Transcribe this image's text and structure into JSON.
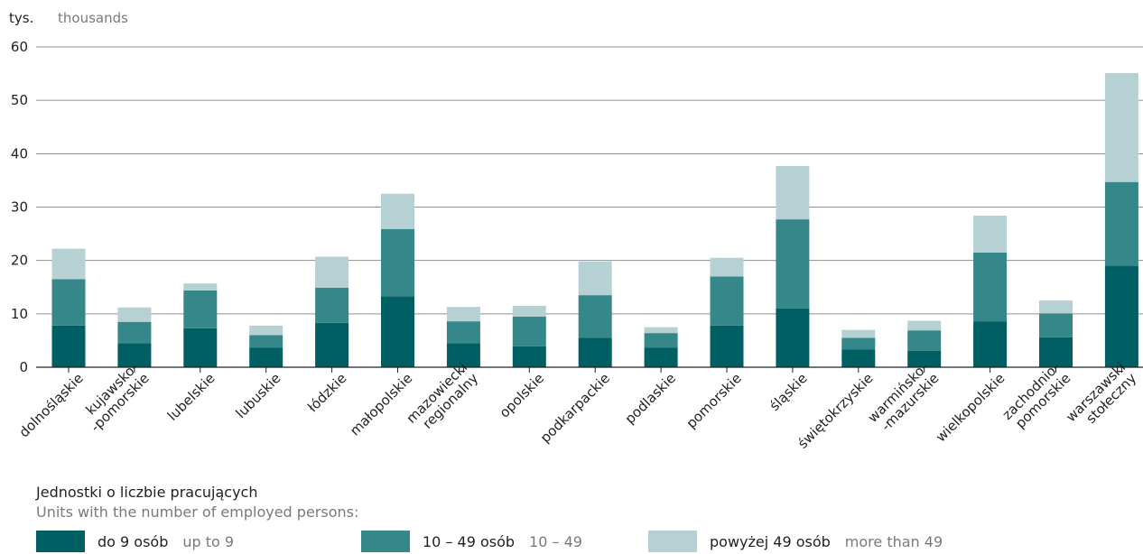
{
  "chart_data": {
    "type": "bar",
    "stacked": true,
    "unit_label_pl": "tys.",
    "unit_label_en": "thousands",
    "ylim": [
      0,
      60
    ],
    "yticks": [
      0,
      10,
      20,
      30,
      40,
      50,
      60
    ],
    "grid": true,
    "categories": [
      [
        "dolnośląskie"
      ],
      [
        "kujawsko-",
        "-pomorskie"
      ],
      [
        "lubelskie"
      ],
      [
        "lubuskie"
      ],
      [
        "łódzkie"
      ],
      [
        "małopolskie"
      ],
      [
        "mazowiecki",
        "regionalny"
      ],
      [
        "opolskie"
      ],
      [
        "podkarpackie"
      ],
      [
        "podlaskie"
      ],
      [
        "pomorskie"
      ],
      [
        "śląskie"
      ],
      [
        "świętokrzyskie"
      ],
      [
        "warmińsko-",
        "-mazurskie"
      ],
      [
        "wielkopolskie"
      ],
      [
        "zachodnio-",
        "pomorskie"
      ],
      [
        "warszawski",
        "stołeczny"
      ]
    ],
    "series": [
      {
        "name": "do 9 osób",
        "name_en": "up to 9",
        "color": "#005f62",
        "values": [
          7.8,
          4.5,
          7.3,
          3.7,
          8.3,
          13.3,
          4.5,
          3.9,
          5.5,
          3.7,
          7.8,
          11.0,
          3.3,
          3.1,
          8.6,
          5.6,
          19.0
        ]
      },
      {
        "name": "10 – 49 osób",
        "name_en": "10 – 49",
        "color": "#35878a",
        "values": [
          8.7,
          4.0,
          7.1,
          2.3,
          6.6,
          12.6,
          4.1,
          5.6,
          8.0,
          2.7,
          9.2,
          16.7,
          2.2,
          3.8,
          12.9,
          4.5,
          15.7
        ]
      },
      {
        "name": "powyżej 49 osób",
        "name_en": "more than 49",
        "color": "#b5d1d4",
        "values": [
          5.7,
          2.7,
          1.3,
          1.8,
          5.8,
          6.6,
          2.7,
          2.0,
          6.3,
          1.1,
          3.5,
          10.0,
          1.5,
          1.8,
          6.9,
          2.4,
          20.4
        ]
      }
    ]
  },
  "legend": {
    "title_pl": "Jednostki o liczbie pracujących",
    "title_en": "Units with the number of employed persons:"
  }
}
